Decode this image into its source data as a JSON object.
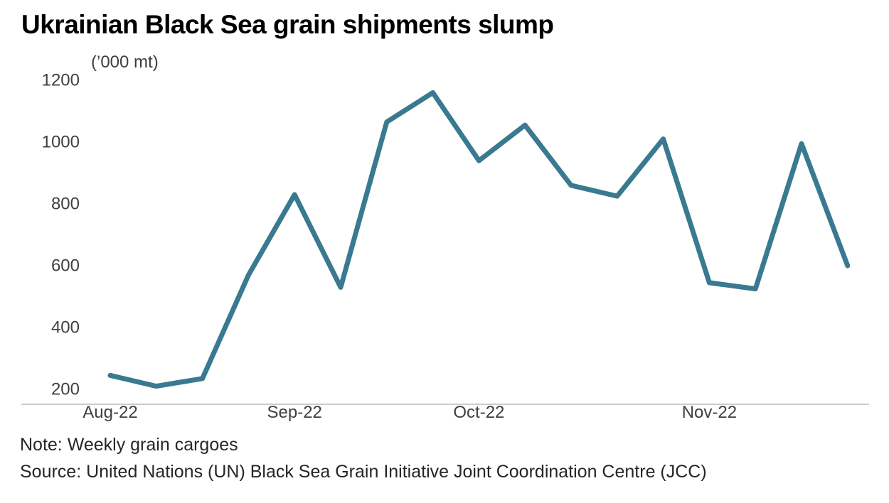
{
  "title": "Ukrainian Black Sea grain shipments slump",
  "note": "Note: Weekly grain cargoes",
  "source": "Source: United Nations (UN) Black Sea Grain Initiative Joint Coordination Centre (JCC)",
  "chart_data": {
    "type": "line",
    "title": "Ukrainian Black Sea grain shipments slump",
    "unit_label": "(’000 mt)",
    "xlabel": "",
    "ylabel": "’000 mt",
    "ylim": [
      200,
      1200
    ],
    "yticks": [
      200,
      400,
      600,
      800,
      1000,
      1200
    ],
    "x_tick_labels": [
      "Aug-22",
      "Sep-22",
      "Oct-22",
      "Nov-22"
    ],
    "x_tick_indices": [
      0,
      4,
      8,
      13
    ],
    "grid": false,
    "legend_position": "none",
    "series": [
      {
        "name": "Weekly grain cargoes",
        "color": "#3a7a90",
        "values": [
          245,
          210,
          235,
          570,
          830,
          530,
          1065,
          1160,
          940,
          1055,
          860,
          825,
          1010,
          545,
          525,
          995,
          600
        ]
      }
    ]
  }
}
